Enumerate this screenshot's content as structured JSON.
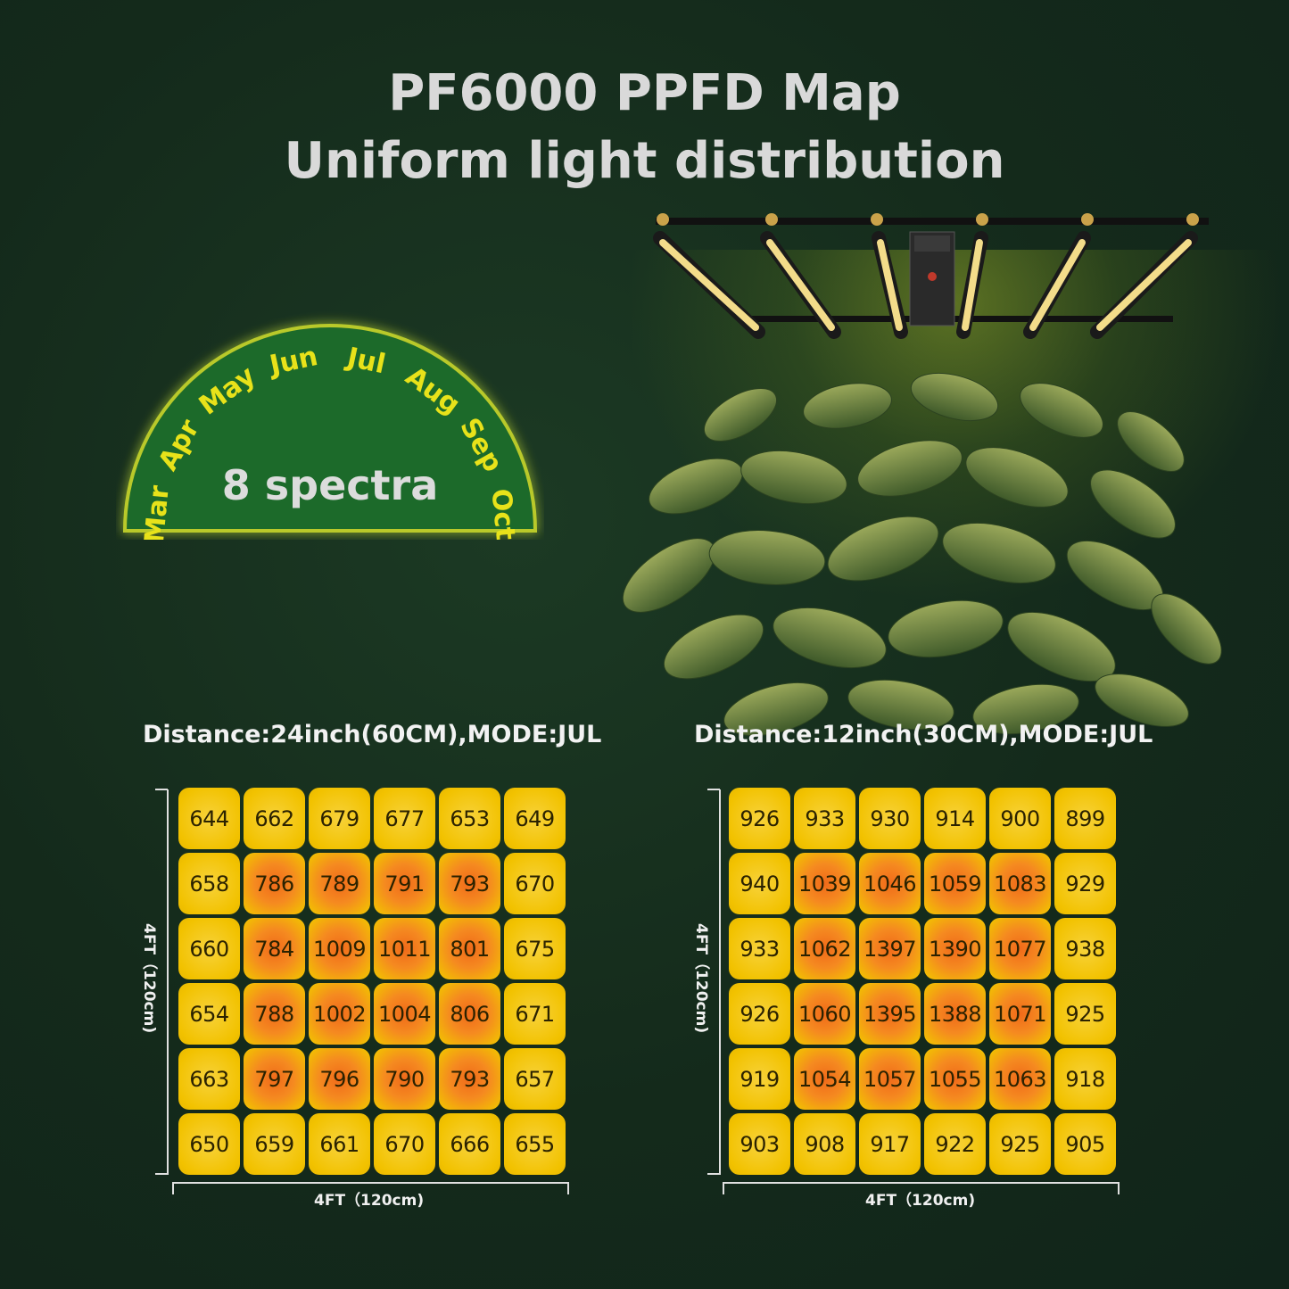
{
  "header": {
    "title": "PF6000 PPFD Map",
    "subtitle": "Uniform light distribution"
  },
  "badge": {
    "months": [
      "Mar",
      "Apr",
      "May",
      "Jun",
      "Jul",
      "Aug",
      "Sep",
      "Oct"
    ],
    "label": "8 spectra"
  },
  "maps": [
    {
      "caption": "Distance:24inch(60CM),MODE:JUL",
      "width_label": "4FT（120cm)",
      "height_label": "4FT（120cm)",
      "rows": [
        [
          "644",
          "662",
          "679",
          "677",
          "653",
          "649"
        ],
        [
          "658",
          "786",
          "789",
          "791",
          "793",
          "670"
        ],
        [
          "660",
          "784",
          "1009",
          "1011",
          "801",
          "675"
        ],
        [
          "654",
          "788",
          "1002",
          "1004",
          "806",
          "671"
        ],
        [
          "663",
          "797",
          "796",
          "790",
          "793",
          "657"
        ],
        [
          "650",
          "659",
          "661",
          "670",
          "666",
          "655"
        ]
      ]
    },
    {
      "caption": "Distance:12inch(30CM),MODE:JUL",
      "width_label": "4FT（120cm)",
      "height_label": "4FT（120cm)",
      "rows": [
        [
          "926",
          "933",
          "930",
          "914",
          "900",
          "899"
        ],
        [
          "940",
          "1039",
          "1046",
          "1059",
          "1083",
          "929"
        ],
        [
          "933",
          "1062",
          "1397",
          "1390",
          "1077",
          "938"
        ],
        [
          "926",
          "1060",
          "1395",
          "1388",
          "1071",
          "925"
        ],
        [
          "919",
          "1054",
          "1057",
          "1055",
          "1063",
          "918"
        ],
        [
          "903",
          "908",
          "917",
          "922",
          "925",
          "905"
        ]
      ]
    }
  ],
  "colors": {
    "background": "#142a1b",
    "cell_edge": "#f2c200",
    "cell_hot": "#f06a1a",
    "badge_fill": "#1f6b2c",
    "badge_text": "#e8e21a"
  }
}
